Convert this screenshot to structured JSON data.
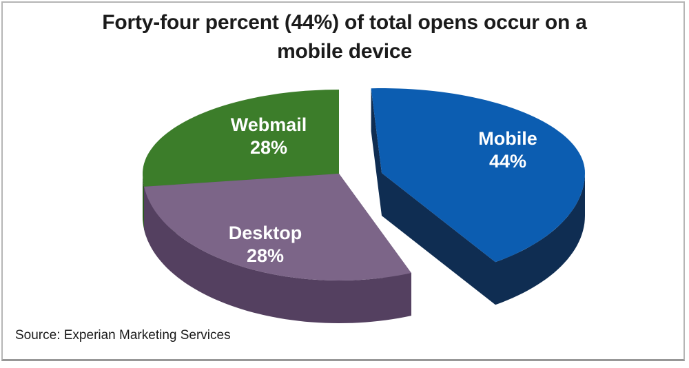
{
  "title": "Forty-four percent (44%) of total opens occur on a\nmobile device",
  "source_note": "Source: Experian Marketing Services",
  "chart_data": {
    "type": "pie",
    "is_3d": true,
    "direction": "clockwise",
    "start_angle_deg": 0,
    "title": "Forty-four percent (44%) of total opens occur on a mobile device",
    "categories": [
      "Mobile",
      "Desktop",
      "Webmail"
    ],
    "values": [
      44,
      28,
      28
    ],
    "unit": "%",
    "exploded_slice": "Mobile",
    "legend": "none",
    "data_labels_style": "category name and percent shown in white inside each slice",
    "label_text_color": "#FFFFFF",
    "slices": [
      {
        "label": "Mobile",
        "value": 44,
        "pct_label": "44%",
        "color_top": "#0C5DB1",
        "color_side": "#0F2D52",
        "exploded": true
      },
      {
        "label": "Desktop",
        "value": 28,
        "pct_label": "28%",
        "color_top": "#7C6588",
        "color_side": "#544060",
        "exploded": false
      },
      {
        "label": "Webmail",
        "value": 28,
        "pct_label": "28%",
        "color_top": "#3C7D2A",
        "color_side": "#2B5B1E",
        "exploded": false
      }
    ]
  }
}
